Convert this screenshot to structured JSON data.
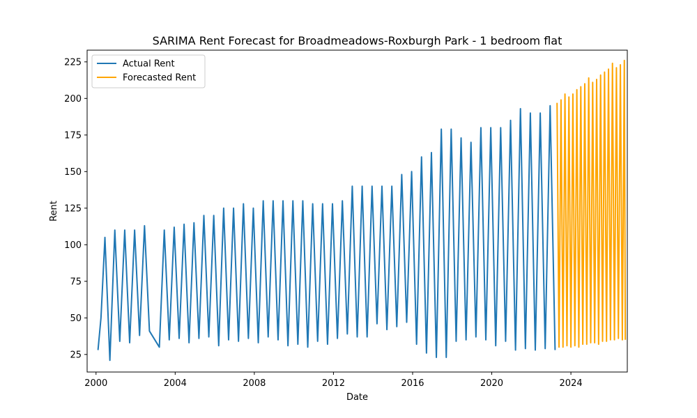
{
  "chart_data": {
    "type": "line",
    "title": "SARIMA Rent Forecast for Broadmeadows-Roxburgh Park - 1 bedroom flat",
    "xlabel": "Date",
    "ylabel": "Rent",
    "xlim": [
      1999.55,
      2026.85
    ],
    "ylim": [
      13,
      233
    ],
    "x_ticks": [
      2000,
      2004,
      2008,
      2012,
      2016,
      2020,
      2024
    ],
    "y_ticks": [
      25,
      50,
      75,
      100,
      125,
      150,
      175,
      200,
      225
    ],
    "grid": false,
    "legend_position": "upper left",
    "series": [
      {
        "name": "Actual Rent",
        "color": "#1f77b4",
        "points": [
          [
            2000.1,
            28
          ],
          [
            2000.25,
            50
          ],
          [
            2000.45,
            105
          ],
          [
            2000.7,
            21
          ],
          [
            2000.95,
            110
          ],
          [
            2001.2,
            34
          ],
          [
            2001.45,
            110
          ],
          [
            2001.7,
            33
          ],
          [
            2001.95,
            110
          ],
          [
            2002.2,
            38
          ],
          [
            2002.45,
            113
          ],
          [
            2002.7,
            41
          ],
          [
            2003.2,
            30
          ],
          [
            2003.45,
            110
          ],
          [
            2003.7,
            35
          ],
          [
            2003.95,
            112
          ],
          [
            2004.2,
            36
          ],
          [
            2004.45,
            114
          ],
          [
            2004.7,
            33
          ],
          [
            2004.95,
            115
          ],
          [
            2005.2,
            36
          ],
          [
            2005.45,
            120
          ],
          [
            2005.7,
            37
          ],
          [
            2005.95,
            120
          ],
          [
            2006.2,
            31
          ],
          [
            2006.45,
            125
          ],
          [
            2006.7,
            35
          ],
          [
            2006.95,
            125
          ],
          [
            2007.2,
            34
          ],
          [
            2007.45,
            128
          ],
          [
            2007.7,
            36
          ],
          [
            2007.95,
            125
          ],
          [
            2008.2,
            33
          ],
          [
            2008.45,
            130
          ],
          [
            2008.7,
            37
          ],
          [
            2008.95,
            130
          ],
          [
            2009.2,
            35
          ],
          [
            2009.45,
            130
          ],
          [
            2009.7,
            31
          ],
          [
            2009.95,
            130
          ],
          [
            2010.2,
            32
          ],
          [
            2010.45,
            130
          ],
          [
            2010.7,
            30
          ],
          [
            2010.95,
            128
          ],
          [
            2011.2,
            34
          ],
          [
            2011.45,
            128
          ],
          [
            2011.7,
            32
          ],
          [
            2011.95,
            128
          ],
          [
            2012.2,
            36
          ],
          [
            2012.45,
            130
          ],
          [
            2012.7,
            39
          ],
          [
            2012.95,
            140
          ],
          [
            2013.2,
            37
          ],
          [
            2013.45,
            140
          ],
          [
            2013.7,
            37
          ],
          [
            2013.95,
            140
          ],
          [
            2014.2,
            46
          ],
          [
            2014.45,
            140
          ],
          [
            2014.7,
            42
          ],
          [
            2014.95,
            140
          ],
          [
            2015.2,
            44
          ],
          [
            2015.45,
            148
          ],
          [
            2015.7,
            47
          ],
          [
            2015.95,
            150
          ],
          [
            2016.2,
            32
          ],
          [
            2016.45,
            160
          ],
          [
            2016.7,
            26
          ],
          [
            2016.95,
            163
          ],
          [
            2017.2,
            23
          ],
          [
            2017.45,
            179
          ],
          [
            2017.7,
            23
          ],
          [
            2017.95,
            179
          ],
          [
            2018.2,
            34
          ],
          [
            2018.45,
            173
          ],
          [
            2018.7,
            35
          ],
          [
            2018.95,
            170
          ],
          [
            2019.2,
            37
          ],
          [
            2019.45,
            180
          ],
          [
            2019.7,
            35
          ],
          [
            2019.95,
            180
          ],
          [
            2020.2,
            31
          ],
          [
            2020.45,
            180
          ],
          [
            2020.7,
            34
          ],
          [
            2020.95,
            185
          ],
          [
            2021.2,
            28
          ],
          [
            2021.45,
            193
          ],
          [
            2021.7,
            29
          ],
          [
            2021.95,
            190
          ],
          [
            2022.2,
            28
          ],
          [
            2022.45,
            190
          ],
          [
            2022.7,
            29
          ],
          [
            2022.95,
            195
          ],
          [
            2023.2,
            28
          ]
        ]
      },
      {
        "name": "Forecasted Rent",
        "color": "#ffa500",
        "points": [
          [
            2023.3,
            197
          ],
          [
            2023.4,
            30
          ],
          [
            2023.5,
            199
          ],
          [
            2023.6,
            30
          ],
          [
            2023.7,
            203
          ],
          [
            2023.8,
            31
          ],
          [
            2023.9,
            201
          ],
          [
            2024.0,
            30
          ],
          [
            2024.1,
            203
          ],
          [
            2024.2,
            31
          ],
          [
            2024.3,
            206
          ],
          [
            2024.4,
            30
          ],
          [
            2024.5,
            208
          ],
          [
            2024.6,
            32
          ],
          [
            2024.7,
            210
          ],
          [
            2024.8,
            32
          ],
          [
            2024.9,
            214
          ],
          [
            2025.0,
            33
          ],
          [
            2025.1,
            211
          ],
          [
            2025.2,
            33
          ],
          [
            2025.3,
            213
          ],
          [
            2025.4,
            32
          ],
          [
            2025.5,
            216
          ],
          [
            2025.6,
            34
          ],
          [
            2025.7,
            218
          ],
          [
            2025.8,
            34
          ],
          [
            2025.9,
            220
          ],
          [
            2026.0,
            35
          ],
          [
            2026.1,
            224
          ],
          [
            2026.2,
            35
          ],
          [
            2026.3,
            221
          ],
          [
            2026.4,
            36
          ],
          [
            2026.5,
            223
          ],
          [
            2026.6,
            35
          ],
          [
            2026.7,
            226
          ],
          [
            2026.75,
            35
          ]
        ]
      }
    ]
  }
}
